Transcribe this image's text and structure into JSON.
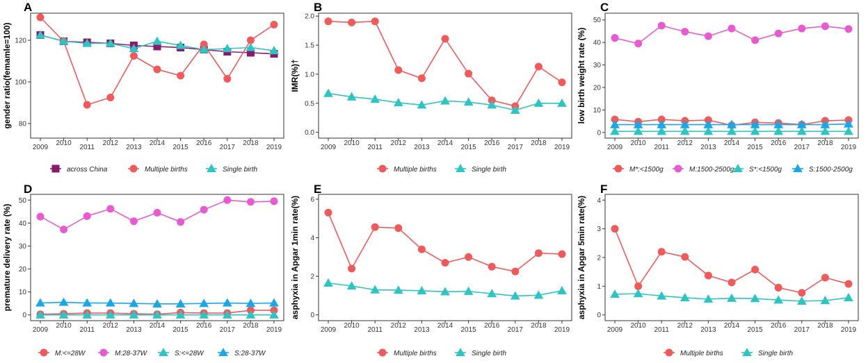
{
  "colors": {
    "red": "#f05a5a",
    "teal": "#2ec4c4",
    "magenta": "#e85bd0",
    "blue": "#1aa7e8",
    "purple": "#8b1a6e"
  },
  "chart_data": [
    {
      "panel": "A",
      "type": "line",
      "ylabel": "gender ratio(femamle=100)",
      "x": [
        "2009",
        "2010",
        "2011",
        "2012",
        "2013",
        "2014",
        "2015",
        "2016",
        "2017",
        "2018",
        "2019"
      ],
      "ylim": [
        73,
        133
      ],
      "yticks": [
        80,
        100,
        120
      ],
      "series": [
        {
          "name": "across China",
          "marker": "square",
          "color": "#8b1a6e",
          "values": [
            122.5,
            119.5,
            119,
            118.5,
            117.5,
            117,
            116.5,
            115.5,
            114.5,
            114,
            113.5
          ]
        },
        {
          "name": "Multiple births",
          "marker": "circle",
          "color": "#f05a5a",
          "values": [
            131,
            119.5,
            89,
            92.5,
            112.5,
            106,
            103,
            118,
            101.5,
            120,
            127.5
          ]
        },
        {
          "name": "Single birth",
          "marker": "triangle",
          "color": "#2ec4c4",
          "values": [
            122.5,
            119.5,
            118.5,
            118.5,
            116,
            119.5,
            117.5,
            115.5,
            116,
            116.5,
            115
          ]
        }
      ]
    },
    {
      "panel": "B",
      "type": "line",
      "ylabel": "IMR(%)†",
      "x": [
        "2009",
        "2010",
        "2011",
        "2012",
        "2013",
        "2014",
        "2015",
        "2016",
        "2017",
        "2018",
        "2019"
      ],
      "ylim": [
        -0.1,
        2.05
      ],
      "yticks": [
        0.0,
        0.5,
        1.0,
        1.5,
        2.0
      ],
      "tick_labels": [
        "0.0",
        "0.5",
        "1.0",
        "1.5",
        "2.0"
      ],
      "series": [
        {
          "name": "Multiple births",
          "marker": "circle",
          "color": "#f05a5a",
          "values": [
            1.91,
            1.89,
            1.91,
            1.07,
            0.93,
            1.61,
            1.01,
            0.55,
            0.45,
            1.13,
            0.86
          ]
        },
        {
          "name": "Single birth",
          "marker": "triangle",
          "color": "#2ec4c4",
          "values": [
            0.67,
            0.61,
            0.57,
            0.51,
            0.47,
            0.54,
            0.52,
            0.47,
            0.38,
            0.5,
            0.5
          ]
        }
      ]
    },
    {
      "panel": "C",
      "type": "line",
      "ylabel": "low birth weight rate (%)",
      "x": [
        "2009",
        "2010",
        "2011",
        "2012",
        "2013",
        "2014",
        "2015",
        "2016",
        "2017",
        "2018",
        "2019"
      ],
      "ylim": [
        -2.5,
        53
      ],
      "yticks": [
        0,
        10,
        20,
        30,
        40,
        50
      ],
      "series": [
        {
          "name": "M*:<1500g",
          "marker": "circle",
          "color": "#f05a5a",
          "values": [
            5.8,
            4.8,
            5.8,
            5.2,
            5.5,
            3.2,
            4.5,
            4.2,
            3.5,
            5.2,
            5.5
          ]
        },
        {
          "name": "M:1500-2500g",
          "marker": "circle",
          "color": "#e85bd0",
          "values": [
            42,
            39.5,
            47.5,
            44.8,
            42.8,
            46.2,
            41,
            44,
            46.2,
            47.2,
            46
          ]
        },
        {
          "name": "S*:<1500g",
          "marker": "triangle",
          "color": "#2ec4c4",
          "values": [
            0.5,
            0.5,
            0.5,
            0.5,
            0.5,
            0.5,
            0.5,
            0.5,
            0.5,
            0.5,
            0.5
          ]
        },
        {
          "name": "S:1500-2500g",
          "marker": "triangle",
          "color": "#1aa7e8",
          "values": [
            3.5,
            3.5,
            3.5,
            3.5,
            3.5,
            3.5,
            3.5,
            3.5,
            3.5,
            3.5,
            3.8
          ]
        }
      ]
    },
    {
      "panel": "D",
      "type": "line",
      "ylabel": "premature delivery rate (%)",
      "x": [
        "2009",
        "2010",
        "2011",
        "2012",
        "2013",
        "2014",
        "2015",
        "2016",
        "2017",
        "2018",
        "2019"
      ],
      "ylim": [
        -2.5,
        52.5
      ],
      "yticks": [
        0,
        10,
        20,
        30,
        40,
        50
      ],
      "series": [
        {
          "name": "M:<=28W",
          "marker": "circle",
          "color": "#f05a5a",
          "values": [
            0.3,
            0.5,
            0.8,
            0.8,
            0.5,
            0.3,
            1,
            0.8,
            0.8,
            2,
            2
          ]
        },
        {
          "name": "M:28-37W",
          "marker": "circle",
          "color": "#e85bd0",
          "values": [
            42.8,
            37.2,
            43,
            46.2,
            40.8,
            44.5,
            40.5,
            45.8,
            50,
            49.2,
            49.5
          ]
        },
        {
          "name": "S:<=28W",
          "marker": "triangle",
          "color": "#2ec4c4",
          "values": [
            0,
            0,
            0,
            0,
            0,
            0,
            0,
            0,
            0,
            0,
            0
          ]
        },
        {
          "name": "S:28-37W",
          "marker": "triangle",
          "color": "#1aa7e8",
          "values": [
            5.2,
            5.5,
            5.2,
            5.2,
            5,
            4.8,
            4.8,
            5,
            5.2,
            5,
            5.2
          ]
        }
      ]
    },
    {
      "panel": "E",
      "type": "line",
      "ylabel": "asphyxia in Apgar 1min rate(%)",
      "x": [
        "2009",
        "2010",
        "2011",
        "2012",
        "2013",
        "2014",
        "2015",
        "2016",
        "2017",
        "2018",
        "2019"
      ],
      "ylim": [
        -0.3,
        6.25
      ],
      "yticks": [
        0,
        2,
        4,
        6
      ],
      "series": [
        {
          "name": "Multiple births",
          "marker": "circle",
          "color": "#f05a5a",
          "values": [
            5.3,
            2.4,
            4.55,
            4.5,
            3.4,
            2.7,
            3,
            2.5,
            2.25,
            3.2,
            3.15
          ]
        },
        {
          "name": "Single birth",
          "marker": "triangle",
          "color": "#2ec4c4",
          "values": [
            1.65,
            1.5,
            1.3,
            1.28,
            1.25,
            1.2,
            1.22,
            1.1,
            0.98,
            1.02,
            1.25
          ]
        }
      ]
    },
    {
      "panel": "F",
      "type": "line",
      "ylabel": "asphyxia in Apgar 5min rate(%)",
      "x": [
        "2009",
        "2010",
        "2011",
        "2012",
        "2013",
        "2014",
        "2015",
        "2016",
        "2017",
        "2018",
        "2019"
      ],
      "ylim": [
        -0.2,
        4.2
      ],
      "yticks": [
        0,
        1,
        2,
        3,
        4
      ],
      "series": [
        {
          "name": "Multiple births",
          "marker": "circle",
          "color": "#f05a5a",
          "values": [
            3,
            1,
            2.2,
            2.02,
            1.37,
            1.13,
            1.58,
            0.95,
            0.77,
            1.3,
            1.08
          ]
        },
        {
          "name": "Single birth",
          "marker": "triangle",
          "color": "#2ec4c4",
          "values": [
            0.72,
            0.74,
            0.66,
            0.6,
            0.55,
            0.58,
            0.57,
            0.52,
            0.48,
            0.5,
            0.6
          ]
        }
      ]
    }
  ]
}
